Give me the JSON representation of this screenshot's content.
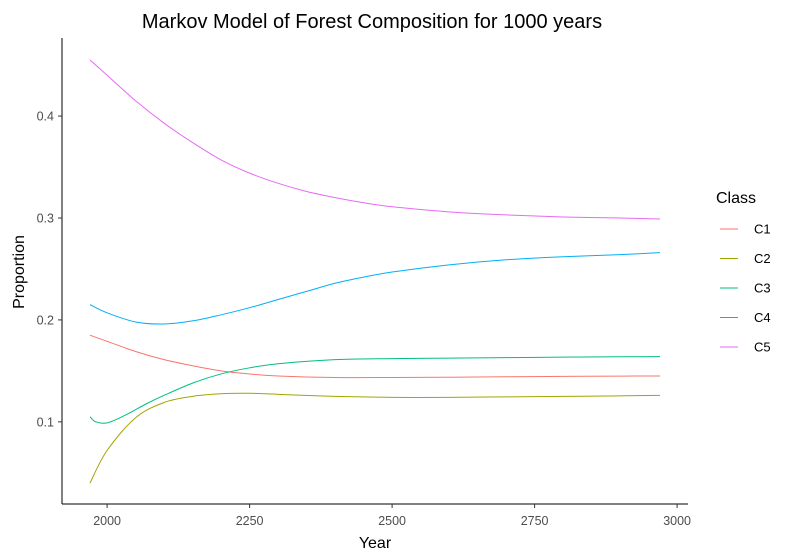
{
  "chart_data": {
    "type": "line",
    "title": "Markov Model of Forest Composition for 1000 years",
    "xlabel": "Year",
    "ylabel": "Proportion",
    "xlim": [
      1970,
      2970
    ],
    "ylim": [
      0.04,
      0.455
    ],
    "xticks": [
      2000,
      2250,
      2500,
      2750,
      3000
    ],
    "yticks": [
      0.1,
      0.2,
      0.3,
      0.4
    ],
    "xtick_labels": [
      "2000",
      "2250",
      "2500",
      "2750",
      "3000"
    ],
    "ytick_labels": [
      "0.1",
      "0.2",
      "0.3",
      "0.4"
    ],
    "grid": false,
    "legend": {
      "title": "Class",
      "placement": "right"
    },
    "series": [
      {
        "name": "C1",
        "color": "#F8766D",
        "x": [
          1970,
          2000,
          2050,
          2100,
          2150,
          2200,
          2250,
          2300,
          2400,
          2500,
          2600,
          2700,
          2800,
          2900,
          2970
        ],
        "y": [
          0.185,
          0.179,
          0.169,
          0.161,
          0.155,
          0.15,
          0.147,
          0.145,
          0.1435,
          0.1435,
          0.1438,
          0.1442,
          0.1446,
          0.1449,
          0.145
        ]
      },
      {
        "name": "C2",
        "color": "#A3A500",
        "x": [
          1970,
          2000,
          2050,
          2100,
          2150,
          2200,
          2250,
          2300,
          2400,
          2500,
          2600,
          2700,
          2800,
          2900,
          2970
        ],
        "y": [
          0.04,
          0.072,
          0.104,
          0.119,
          0.125,
          0.1275,
          0.128,
          0.127,
          0.125,
          0.124,
          0.124,
          0.1245,
          0.125,
          0.1255,
          0.126
        ]
      },
      {
        "name": "C3",
        "color": "#00BF7D",
        "x": [
          1970,
          1980,
          2000,
          2030,
          2070,
          2100,
          2150,
          2200,
          2250,
          2300,
          2400,
          2500,
          2600,
          2700,
          2800,
          2900,
          2970
        ],
        "y": [
          0.105,
          0.1,
          0.099,
          0.106,
          0.118,
          0.126,
          0.138,
          0.147,
          0.153,
          0.157,
          0.161,
          0.162,
          0.1625,
          0.163,
          0.1635,
          0.1638,
          0.164
        ]
      },
      {
        "name": "C4",
        "color": "#00B0F6",
        "x": [
          1970,
          2000,
          2050,
          2100,
          2150,
          2200,
          2250,
          2300,
          2350,
          2400,
          2450,
          2500,
          2600,
          2700,
          2800,
          2900,
          2970
        ],
        "y": [
          0.215,
          0.207,
          0.198,
          0.196,
          0.199,
          0.205,
          0.212,
          0.22,
          0.228,
          0.236,
          0.242,
          0.247,
          0.254,
          0.259,
          0.262,
          0.264,
          0.266
        ]
      },
      {
        "name": "C5",
        "color": "#E76BF3",
        "x": [
          1970,
          2000,
          2050,
          2100,
          2150,
          2200,
          2250,
          2300,
          2350,
          2400,
          2450,
          2500,
          2600,
          2700,
          2800,
          2900,
          2970
        ],
        "y": [
          0.455,
          0.44,
          0.415,
          0.393,
          0.374,
          0.357,
          0.344,
          0.334,
          0.326,
          0.32,
          0.315,
          0.311,
          0.306,
          0.303,
          0.301,
          0.3,
          0.299
        ]
      }
    ]
  }
}
